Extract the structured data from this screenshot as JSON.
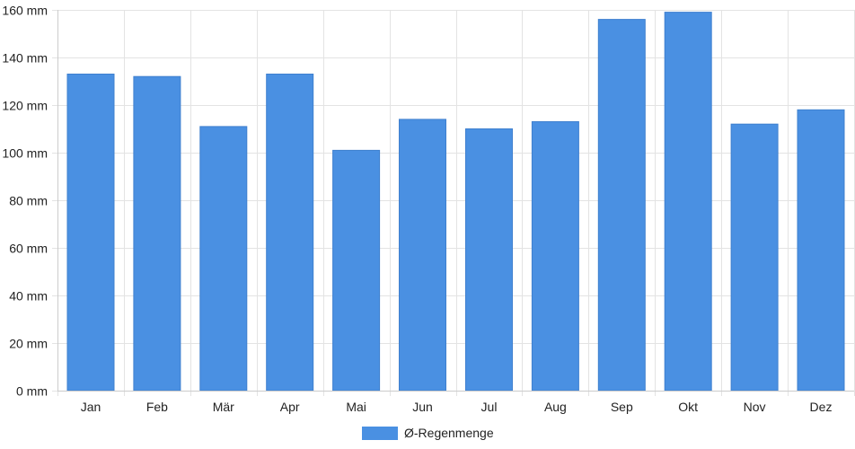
{
  "chart_data": {
    "type": "bar",
    "categories": [
      "Jan",
      "Feb",
      "Mär",
      "Apr",
      "Mai",
      "Jun",
      "Jul",
      "Aug",
      "Sep",
      "Okt",
      "Nov",
      "Dez"
    ],
    "series": [
      {
        "name": "Ø-Regenmenge",
        "values": [
          133,
          132,
          111,
          133,
          101,
          114,
          110,
          113,
          156,
          159,
          112,
          118
        ],
        "color": "#4a90e2"
      }
    ],
    "y_ticks": [
      "0 mm",
      "20 mm",
      "40 mm",
      "60 mm",
      "80 mm",
      "100 mm",
      "120 mm",
      "140 mm",
      "160 mm"
    ],
    "ylim": [
      0,
      160
    ],
    "grid": true,
    "legend_position": "bottom-center"
  }
}
